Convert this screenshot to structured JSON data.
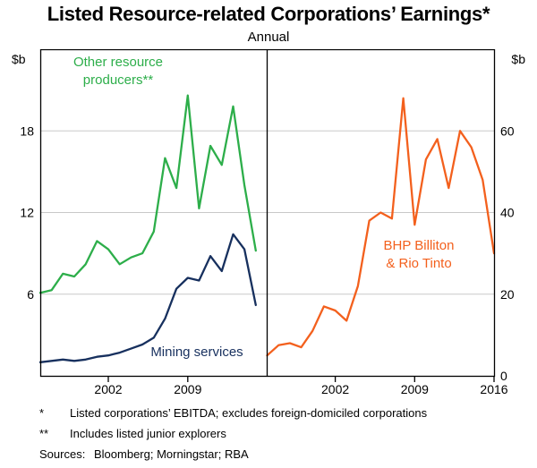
{
  "title": "Listed Resource-related Corporations’ Earnings*",
  "subtitle": "Annual",
  "labels": {
    "unit_left": "$b",
    "unit_right": "$b",
    "other_resource_line1": "Other resource",
    "other_resource_line2": "producers**",
    "mining_services": "Mining services",
    "bhp_line1": "BHP Billiton",
    "bhp_line2": "& Rio Tinto"
  },
  "colors": {
    "green": "#2DAE4A",
    "navy": "#17305E",
    "orange": "#F3601D",
    "grid": "#C9C9C9",
    "axis": "#000000"
  },
  "chart_data": [
    {
      "type": "line",
      "panel": "left",
      "xlim": [
        1996,
        2016
      ],
      "xticks": [
        2002,
        2009
      ],
      "ylim": [
        0,
        24
      ],
      "yticks": [
        6,
        12,
        18
      ],
      "ylabel": "$b",
      "grid": true,
      "series": [
        {
          "name": "Other resource producers**",
          "color": "#2DAE4A",
          "x": [
            1996,
            1997,
            1998,
            1999,
            2000,
            2001,
            2002,
            2003,
            2004,
            2005,
            2006,
            2007,
            2008,
            2009,
            2010,
            2011,
            2012,
            2013,
            2014,
            2015
          ],
          "values": [
            6.1,
            6.3,
            7.5,
            7.3,
            8.2,
            9.9,
            9.3,
            8.2,
            8.7,
            9.0,
            10.6,
            16.0,
            13.8,
            20.6,
            12.3,
            16.9,
            15.5,
            19.8,
            14.0,
            9.2
          ]
        },
        {
          "name": "Mining services",
          "color": "#17305E",
          "x": [
            1996,
            1997,
            1998,
            1999,
            2000,
            2001,
            2002,
            2003,
            2004,
            2005,
            2006,
            2007,
            2008,
            2009,
            2010,
            2011,
            2012,
            2013,
            2014,
            2015
          ],
          "values": [
            1.0,
            1.1,
            1.2,
            1.1,
            1.2,
            1.4,
            1.5,
            1.7,
            2.0,
            2.3,
            2.8,
            4.2,
            6.4,
            7.2,
            7.0,
            8.8,
            7.7,
            10.4,
            9.3,
            5.2
          ]
        }
      ]
    },
    {
      "type": "line",
      "panel": "right",
      "xlim": [
        1996,
        2016
      ],
      "xticks": [
        2002,
        2009,
        2016
      ],
      "ylim": [
        0,
        80
      ],
      "yticks": [
        0,
        20,
        40,
        60
      ],
      "ylabel": "$b",
      "grid": true,
      "series": [
        {
          "name": "BHP Billiton & Rio Tinto",
          "color": "#F3601D",
          "x": [
            1996,
            1997,
            1998,
            1999,
            2000,
            2001,
            2002,
            2003,
            2004,
            2005,
            2006,
            2007,
            2008,
            2009,
            2010,
            2011,
            2012,
            2013,
            2014,
            2015,
            2016
          ],
          "values": [
            5,
            7.5,
            8,
            7,
            11,
            17,
            16,
            13.5,
            22,
            38,
            40,
            38.5,
            68,
            37,
            53,
            58,
            46,
            60,
            56,
            48,
            30
          ]
        }
      ]
    }
  ],
  "footnotes": [
    {
      "marker": "*",
      "text": "Listed corporations’ EBITDA; excludes foreign-domiciled corporations"
    },
    {
      "marker": "**",
      "text": "Includes listed junior explorers"
    }
  ],
  "sources_label": "Sources:",
  "sources_text": "Bloomberg; Morningstar; RBA"
}
